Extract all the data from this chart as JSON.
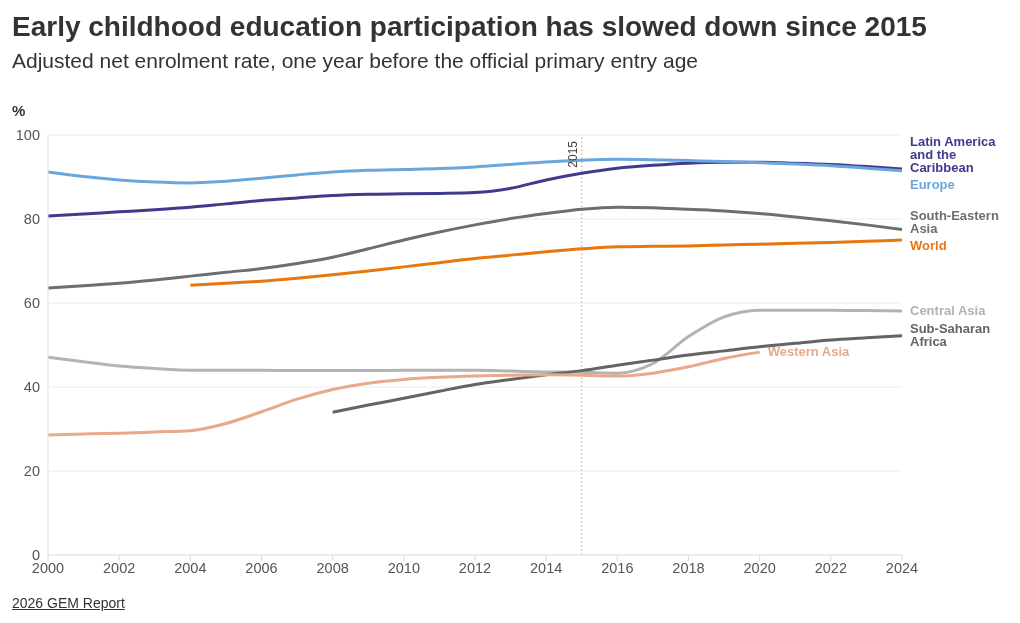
{
  "chart_data": {
    "type": "line",
    "title": "Early childhood education participation has slowed down since 2015",
    "subtitle": "Adjusted net enrolment rate, one year before the official primary entry age",
    "ylabel": "%",
    "annotations": [
      "2026 GEM Report"
    ],
    "x": [
      2000,
      2001,
      2002,
      2003,
      2004,
      2005,
      2006,
      2007,
      2008,
      2009,
      2010,
      2011,
      2012,
      2013,
      2014,
      2015,
      2016,
      2017,
      2018,
      2019,
      2020,
      2021,
      2022,
      2023,
      2024
    ],
    "xlim": [
      2000,
      2024
    ],
    "xticks": [
      2000,
      2002,
      2004,
      2006,
      2008,
      2010,
      2012,
      2014,
      2016,
      2018,
      2020,
      2022,
      2024
    ],
    "ylim": [
      0,
      100
    ],
    "yticks": [
      0,
      20,
      40,
      60,
      80,
      100
    ],
    "grid": "y",
    "ref_lines": [
      {
        "axis": "x",
        "value": 2015,
        "label": "2015",
        "color": "#e9b8a0",
        "line_style": "dotted"
      }
    ],
    "series": [
      {
        "name": "Latin America and the Caribbean",
        "color": "#3f3b8c",
        "values": [
          80.7,
          81.2,
          81.7,
          82.2,
          82.8,
          83.6,
          84.4,
          85.0,
          85.6,
          85.9,
          86.0,
          86.1,
          86.3,
          87.3,
          89.3,
          90.9,
          92.1,
          92.8,
          93.3,
          93.5,
          93.5,
          93.3,
          93.0,
          92.5,
          91.9
        ]
      },
      {
        "name": "Europe",
        "color": "#6aa6dc",
        "values": [
          91.2,
          90.1,
          89.3,
          88.8,
          88.6,
          89.0,
          89.7,
          90.5,
          91.2,
          91.6,
          91.8,
          92.0,
          92.4,
          93.0,
          93.6,
          94.0,
          94.2,
          94.1,
          93.9,
          93.7,
          93.4,
          93.1,
          92.7,
          92.1,
          91.5
        ]
      },
      {
        "name": "South-Eastern Asia",
        "color": "#6e6e6e",
        "values": [
          63.6,
          64.1,
          64.7,
          65.5,
          66.4,
          67.3,
          68.2,
          69.4,
          70.9,
          72.9,
          75.0,
          76.9,
          78.6,
          80.1,
          81.3,
          82.3,
          82.8,
          82.7,
          82.3,
          81.9,
          81.3,
          80.5,
          79.6,
          78.6,
          77.5
        ]
      },
      {
        "name": "World",
        "color": "#e8770e",
        "values": [
          null,
          null,
          null,
          null,
          64.2,
          64.7,
          65.2,
          65.9,
          66.7,
          67.6,
          68.6,
          69.6,
          70.6,
          71.4,
          72.2,
          72.9,
          73.4,
          73.5,
          73.6,
          73.8,
          74.0,
          74.2,
          74.4,
          74.7,
          75.0
        ]
      },
      {
        "name": "Central Asia",
        "color": "#b3b3b3",
        "values": [
          47.1,
          46.0,
          45.0,
          44.4,
          44.0,
          44.0,
          44.0,
          43.9,
          43.9,
          43.9,
          44.0,
          44.0,
          44.0,
          43.8,
          43.6,
          43.5,
          43.3,
          45.6,
          52.0,
          56.7,
          58.3,
          58.3,
          58.3,
          58.2,
          58.1
        ]
      },
      {
        "name": "Sub-Saharan Africa",
        "color": "#646464",
        "values": [
          null,
          null,
          null,
          null,
          null,
          null,
          null,
          null,
          34.0,
          35.7,
          37.3,
          39.0,
          40.6,
          41.8,
          42.9,
          43.9,
          45.2,
          46.4,
          47.6,
          48.6,
          49.6,
          50.4,
          51.2,
          51.7,
          52.2
        ]
      },
      {
        "name": "Western Asia",
        "color": "#e8a88a",
        "values": [
          28.6,
          28.8,
          29.0,
          29.3,
          29.6,
          31.3,
          34.1,
          37.1,
          39.4,
          40.9,
          41.8,
          42.3,
          42.6,
          42.8,
          42.9,
          42.8,
          42.6,
          43.3,
          44.8,
          46.8,
          48.3,
          null,
          null,
          null,
          null
        ]
      }
    ]
  }
}
